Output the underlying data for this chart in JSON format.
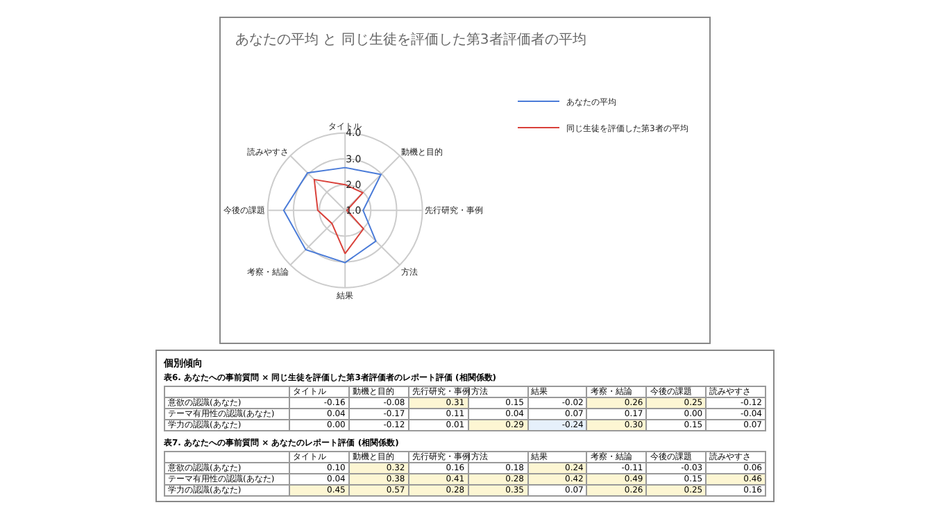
{
  "chart_data": [
    {
      "type": "radar",
      "title": "あなたの平均 と 同じ生徒を評価した第3者評価者の平均",
      "categories": [
        "タイトル",
        "動機と目的",
        "先行研究・事例",
        "方法",
        "結果",
        "考察・結論",
        "今後の課題",
        "読みやすさ"
      ],
      "series": [
        {
          "name": "あなたの平均",
          "color": "#4a7bd8",
          "values": [
            2.66,
            2.97,
            1.7,
            2.69,
            3.03,
            3.16,
            3.38,
            3.06
          ]
        },
        {
          "name": "同じ生徒を評価した第3者の平均",
          "color": "#d9413a",
          "values": [
            2.0,
            1.97,
            1.07,
            2.01,
            2.68,
            1.72,
            2.06,
            2.69
          ]
        }
      ],
      "ylim": [
        1,
        4
      ],
      "yticks": [
        {
          "value": 1,
          "label": "1.0"
        },
        {
          "value": 2,
          "label": "2.0"
        },
        {
          "value": 3,
          "label": "3.0"
        },
        {
          "value": 4,
          "label": "4.0"
        }
      ],
      "grid": true,
      "legend": "top right"
    },
    {
      "type": "heatmap",
      "title": "個別傾向",
      "subtitle": "表6. あなたへの事前質問 × 同じ生徒を評価した第3者評価者のレポート評価 (相関係数)",
      "categories": [
        "タイトル",
        "動機と目的",
        "先行研究・事例",
        "方法",
        "結果",
        "考察・結論",
        "今後の課題",
        "読みやすさ"
      ],
      "y_categories": [
        "意欲の認識(あなた)",
        "テーマ有用性の認識(あなた)",
        "学力の認識(あなた)"
      ],
      "cells": [
        [
          -0.16,
          -0.08,
          0.31,
          0.15,
          -0.02,
          0.26,
          0.25,
          -0.12
        ],
        [
          0.04,
          -0.17,
          0.11,
          0.04,
          0.07,
          0.17,
          0.0,
          -0.04
        ],
        [
          0.0,
          -0.12,
          0.01,
          0.29,
          -0.24,
          0.3,
          0.15,
          0.07
        ]
      ],
      "cell_labels": [
        [
          "-0.16",
          "-0.08",
          "0.31",
          "0.15",
          "-0.02",
          "0.26",
          "0.25",
          "-0.12"
        ],
        [
          "0.04",
          "-0.17",
          "0.11",
          "0.04",
          "0.07",
          "0.17",
          "0.00",
          "-0.04"
        ],
        [
          "0.00",
          "-0.12",
          "0.01",
          "0.29",
          "-0.24",
          "0.30",
          "0.15",
          "0.07"
        ]
      ]
    },
    {
      "type": "heatmap",
      "title": "表7. あなたへの事前質問 × あなたのレポート評価 (相関係数)",
      "categories": [
        "タイトル",
        "動機と目的",
        "先行研究・事例",
        "方法",
        "結果",
        "考察・結論",
        "今後の課題",
        "読みやすさ"
      ],
      "y_categories": [
        "意欲の認識(あなた)",
        "テーマ有用性の認識(あなた)",
        "学力の認識(あなた)"
      ],
      "cells": [
        [
          0.1,
          0.32,
          0.16,
          0.18,
          0.24,
          -0.11,
          -0.03,
          0.06
        ],
        [
          0.04,
          0.38,
          0.41,
          0.28,
          0.42,
          0.49,
          0.15,
          0.46
        ],
        [
          0.45,
          0.57,
          0.28,
          0.35,
          0.07,
          0.26,
          0.25,
          0.16
        ]
      ],
      "cell_labels": [
        [
          "0.10",
          "0.32",
          "0.16",
          "0.18",
          "0.24",
          "-0.11",
          "-0.03",
          "0.06"
        ],
        [
          "0.04",
          "0.38",
          "0.41",
          "0.28",
          "0.42",
          "0.49",
          "0.15",
          "0.46"
        ],
        [
          "0.45",
          "0.57",
          "0.28",
          "0.35",
          "0.07",
          "0.26",
          "0.25",
          "0.16"
        ]
      ]
    }
  ]
}
